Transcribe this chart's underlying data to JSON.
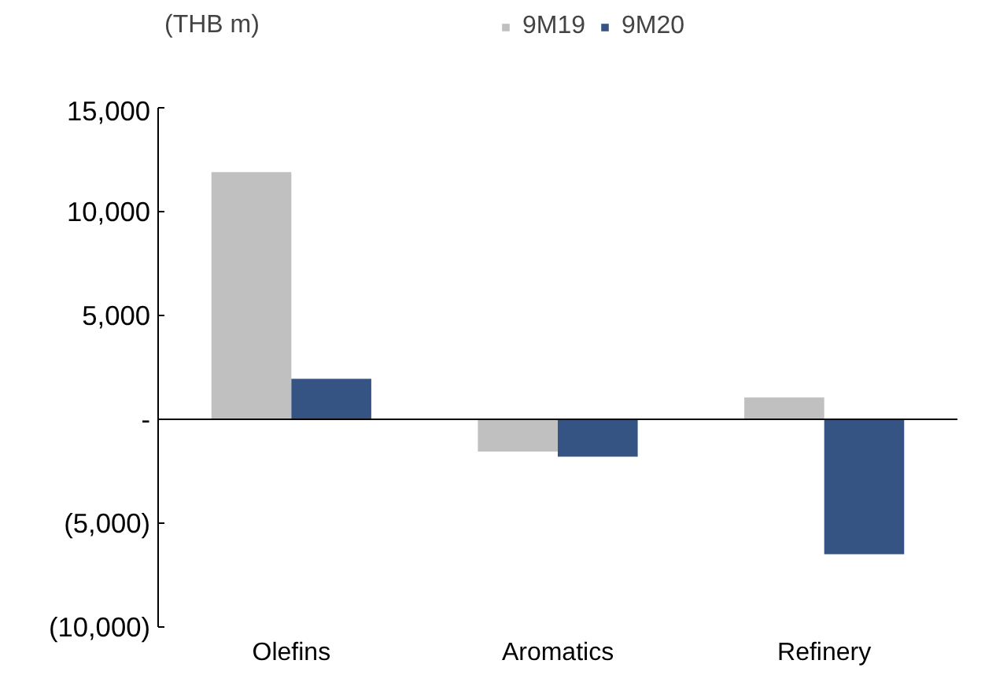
{
  "chart_data": {
    "type": "bar",
    "ylabel": "(THB m)",
    "categories": [
      "Olefins",
      "Aromatics",
      "Refinery"
    ],
    "series": [
      {
        "name": "9M19",
        "color": "#c0c0c0",
        "values": [
          11900,
          -1550,
          1050
        ]
      },
      {
        "name": "9M20",
        "color": "#355484",
        "values": [
          1950,
          -1800,
          -6500
        ]
      }
    ],
    "ylim": [
      -10000,
      15000
    ],
    "yticks": [
      {
        "value": -10000,
        "label": "(10,000)"
      },
      {
        "value": -5000,
        "label": "(5,000)"
      },
      {
        "value": 0,
        "label": "-"
      },
      {
        "value": 5000,
        "label": "5,000"
      },
      {
        "value": 10000,
        "label": "10,000"
      },
      {
        "value": 15000,
        "label": "15,000"
      }
    ],
    "ref_lines": [
      {
        "axis": "y",
        "value": 0,
        "color": "#000000"
      }
    ],
    "grid": false,
    "legend": "top"
  }
}
